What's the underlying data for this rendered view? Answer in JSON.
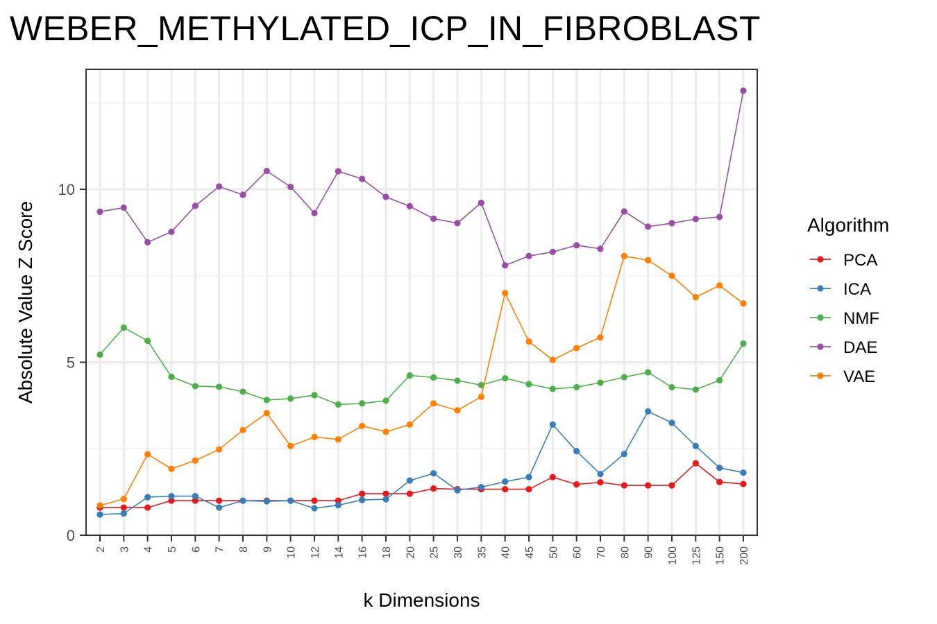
{
  "chart_data": {
    "type": "line",
    "title": "WEBER_METHYLATED_ICP_IN_FIBROBLAST",
    "xlabel": "k Dimensions",
    "ylabel": "Absolute Value Z Score",
    "categories": [
      "2",
      "3",
      "4",
      "5",
      "6",
      "7",
      "8",
      "9",
      "10",
      "12",
      "14",
      "16",
      "18",
      "20",
      "25",
      "30",
      "35",
      "40",
      "45",
      "50",
      "60",
      "70",
      "80",
      "90",
      "100",
      "125",
      "150",
      "200"
    ],
    "ylim": [
      0,
      13
    ],
    "yticks": [
      0,
      5,
      10
    ],
    "grid": true,
    "legend": {
      "title": "Algorithm",
      "position": "right"
    },
    "series": [
      {
        "name": "PCA",
        "color": "#E41A1C",
        "values": [
          0.8,
          0.8,
          0.8,
          1.0,
          1.0,
          1.0,
          1.0,
          1.0,
          1.0,
          1.0,
          1.0,
          1.2,
          1.2,
          1.2,
          1.35,
          1.33,
          1.33,
          1.33,
          1.33,
          1.68,
          1.47,
          1.53,
          1.44,
          1.44,
          1.44,
          2.08,
          1.54,
          1.48
        ]
      },
      {
        "name": "ICA",
        "color": "#377EB8",
        "values": [
          0.6,
          0.63,
          1.1,
          1.13,
          1.13,
          0.8,
          1.0,
          0.98,
          1.0,
          0.78,
          0.87,
          1.02,
          1.04,
          1.58,
          1.79,
          1.3,
          1.39,
          1.55,
          1.68,
          3.2,
          2.43,
          1.77,
          2.35,
          3.58,
          3.25,
          2.58,
          1.95,
          1.81
        ]
      },
      {
        "name": "NMF",
        "color": "#4DAF4A",
        "values": [
          5.22,
          6.0,
          5.62,
          4.58,
          4.31,
          4.29,
          4.15,
          3.91,
          3.95,
          4.05,
          3.78,
          3.81,
          3.89,
          4.62,
          4.56,
          4.47,
          4.34,
          4.54,
          4.37,
          4.23,
          4.28,
          4.41,
          4.57,
          4.71,
          4.28,
          4.21,
          4.48,
          5.54
        ]
      },
      {
        "name": "DAE",
        "color": "#984EA3",
        "values": [
          9.35,
          9.47,
          8.47,
          8.77,
          9.52,
          10.08,
          9.84,
          10.53,
          10.07,
          9.31,
          10.52,
          10.3,
          9.78,
          9.51,
          9.15,
          9.02,
          9.61,
          7.8,
          8.07,
          8.19,
          8.38,
          8.28,
          9.36,
          8.92,
          9.02,
          9.14,
          9.2,
          12.85
        ]
      },
      {
        "name": "VAE",
        "color": "#FF7F00",
        "values": [
          0.86,
          1.05,
          2.34,
          1.92,
          2.16,
          2.48,
          3.04,
          3.53,
          2.58,
          2.84,
          2.77,
          3.16,
          2.99,
          3.2,
          3.81,
          3.61,
          4.0,
          7.0,
          5.6,
          5.07,
          5.41,
          5.72,
          8.07,
          7.95,
          7.5,
          6.88,
          7.22,
          6.7
        ]
      }
    ]
  }
}
